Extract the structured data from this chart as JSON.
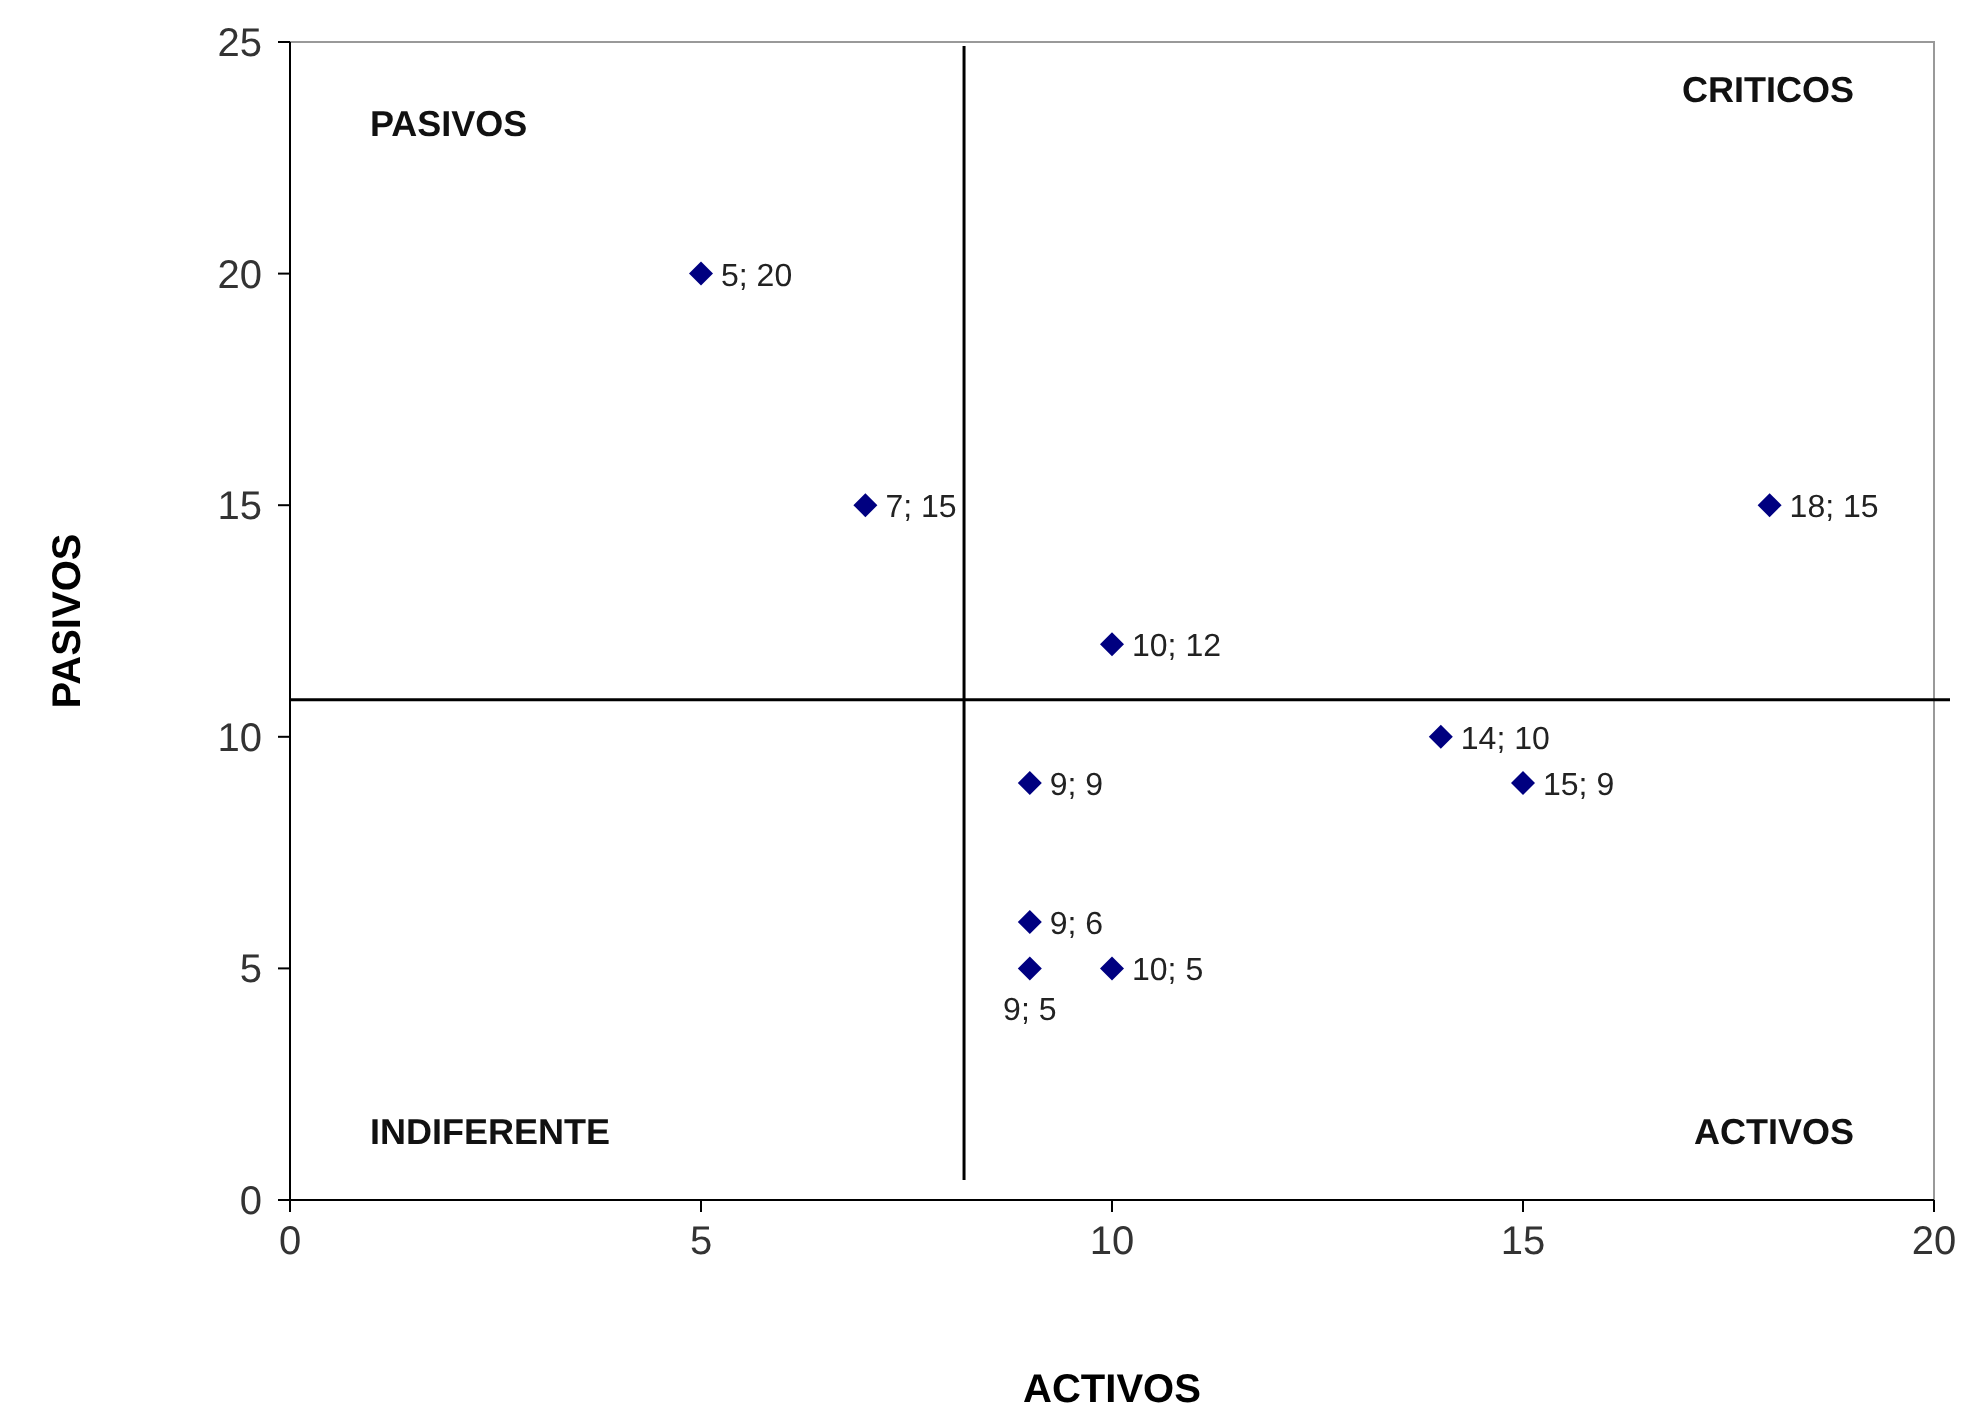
{
  "chart_data": {
    "type": "scatter",
    "xlabel": "ACTIVOS",
    "ylabel": "PASIVOS",
    "x": [
      5,
      7,
      18,
      10,
      14,
      15,
      9,
      9,
      10,
      9
    ],
    "values": [
      20,
      15,
      15,
      12,
      10,
      9,
      9,
      6,
      5,
      5
    ],
    "value_labels": [
      "5; 20",
      "7; 15",
      "18; 15",
      "10; 12",
      "14; 10",
      "15; 9",
      "9; 9",
      "9; 6",
      "10; 5",
      "9; 5"
    ],
    "color": "#000080",
    "marker": "diamond",
    "xlim": [
      0,
      20
    ],
    "xticks": [
      0,
      5,
      10,
      15,
      20
    ],
    "ylim": [
      0,
      25
    ],
    "yticks": [
      0,
      5,
      10,
      15,
      20,
      25
    ],
    "ref_lines": [
      {
        "axis": "x",
        "value": 8.2,
        "color": "#000000"
      },
      {
        "axis": "y",
        "value": 10.8,
        "color": "#000000"
      }
    ],
    "annotations": [
      "PASIVOS",
      "CRITICOS",
      "INDIFERENTE",
      "ACTIVOS"
    ],
    "grid": false
  }
}
